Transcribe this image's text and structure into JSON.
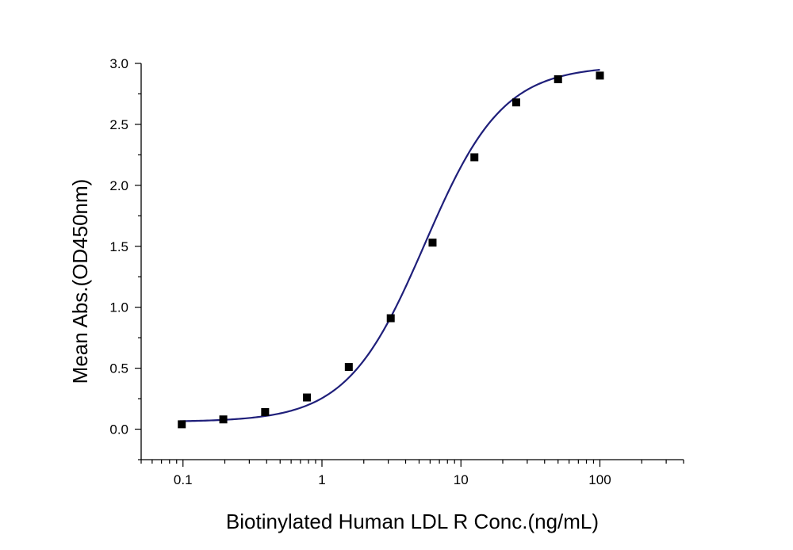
{
  "chart_data": {
    "type": "scatter",
    "title": "",
    "xlabel": "Biotinylated Human LDL R Conc.(ng/mL)",
    "ylabel": "Mean Abs.(OD450nm)",
    "x_scale": "log",
    "xlim": [
      0.05,
      400
    ],
    "ylim": [
      -0.25,
      3.0
    ],
    "x_ticks": [
      0.1,
      1,
      10,
      100
    ],
    "x_tick_labels": [
      "0.1",
      "1",
      "10",
      "100"
    ],
    "y_ticks": [
      0.0,
      0.5,
      1.0,
      1.5,
      2.0,
      2.5,
      3.0
    ],
    "y_tick_labels": [
      "0.0",
      "0.5",
      "1.0",
      "1.5",
      "2.0",
      "2.5",
      "3.0"
    ],
    "grid": false,
    "colors": {
      "points": "#000000",
      "fit": "#1f1f7a"
    },
    "series": [
      {
        "x": [
          0.098,
          0.195,
          0.39,
          0.78,
          1.56,
          3.125,
          6.25,
          12.5,
          25,
          50,
          100
        ],
        "y": [
          0.04,
          0.08,
          0.14,
          0.26,
          0.51,
          0.91,
          1.53,
          2.23,
          2.68,
          2.87,
          2.9
        ]
      }
    ],
    "fit": {
      "model": "4PL",
      "bottom": 0.06,
      "top": 2.98,
      "ec50": 5.5,
      "hill": 1.55,
      "x_range": [
        0.095,
        100
      ]
    }
  }
}
